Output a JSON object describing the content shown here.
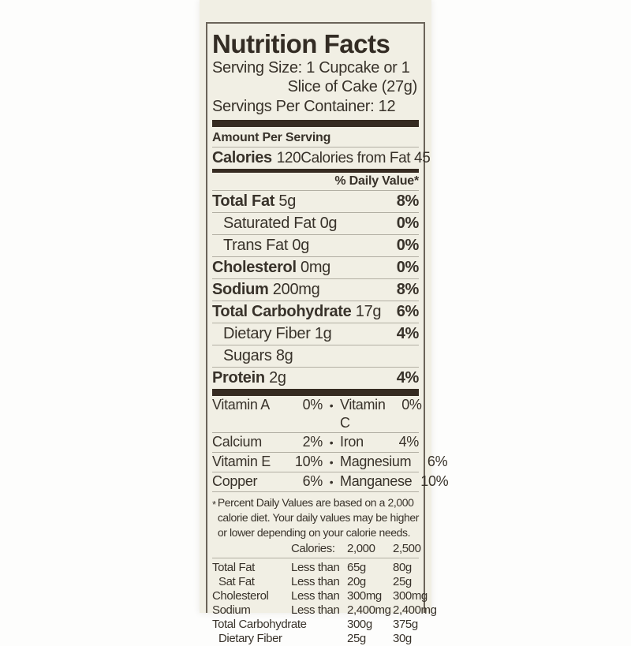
{
  "label": {
    "title": "Nutrition Facts",
    "serving_size_line1": "Serving Size: 1 Cupcake or 1",
    "serving_size_line2": "Slice of Cake (27g)",
    "servings_per_container": "Servings Per Container: 12",
    "amount_per_serving": "Amount Per Serving",
    "calories_label": "Calories",
    "calories_value": "120",
    "calories_from_fat": "Calories from Fat 45",
    "daily_value_header": "% Daily Value*",
    "nutrients": [
      {
        "name": "Total Fat",
        "amount": "5g",
        "dv": "8%"
      },
      {
        "name": "Saturated Fat",
        "amount": "0g",
        "dv": "0%"
      },
      {
        "name": "Trans Fat",
        "amount": "0g",
        "dv": "0%"
      },
      {
        "name": "Cholesterol",
        "amount": "0mg",
        "dv": "0%"
      },
      {
        "name": "Sodium",
        "amount": "200mg",
        "dv": "8%"
      },
      {
        "name": "Total Carbohydrate",
        "amount": "17g",
        "dv": "6%"
      },
      {
        "name": "Dietary Fiber",
        "amount": "1g",
        "dv": "4%"
      },
      {
        "name": "Sugars",
        "amount": "8g",
        "dv": ""
      },
      {
        "name": "Protein",
        "amount": "2g",
        "dv": "4%"
      }
    ],
    "bullet": "•",
    "vitamins": [
      {
        "left_name": "Vitamin A",
        "left_value": "0%",
        "right_name": "Vitamin C",
        "right_value": "0%"
      },
      {
        "left_name": "Calcium",
        "left_value": "2%",
        "right_name": "Iron",
        "right_value": "4%"
      },
      {
        "left_name": "Vitamin E",
        "left_value": "10%",
        "right_name": "Magnesium",
        "right_value": "6%"
      },
      {
        "left_name": "Copper",
        "left_value": "6%",
        "right_name": "Manganese",
        "right_value": "10%"
      }
    ],
    "footnote_marker": "*",
    "footnote_lines": [
      "Percent Daily Values are based on a 2,000",
      "calorie diet. Your daily values may be higher",
      "or lower depending on your calorie needs."
    ],
    "dv_table": {
      "header_label": "Calories:",
      "col1": "2,000",
      "col2": "2,500",
      "rows": [
        {
          "name": "Total Fat",
          "qualifier": "Less than",
          "v1": "65g",
          "v2": "80g"
        },
        {
          "name": "Sat Fat",
          "qualifier": "Less than",
          "v1": "20g",
          "v2": "25g"
        },
        {
          "name": "Cholesterol",
          "qualifier": "Less than",
          "v1": "300mg",
          "v2": "300mg"
        },
        {
          "name": "Sodium",
          "qualifier": "Less than",
          "v1": "2,400mg",
          "v2": "2,400mg"
        },
        {
          "name": "Total Carbohydrate",
          "qualifier": "",
          "v1": "300g",
          "v2": "375g"
        },
        {
          "name": "Dietary Fiber",
          "qualifier": "",
          "v1": "25g",
          "v2": "30g"
        }
      ]
    },
    "colors": {
      "paper": "#f1efe4",
      "ink": "#38322a",
      "bar": "#362b21",
      "hairline": "#b2afa3",
      "border": "#6b6459"
    }
  }
}
